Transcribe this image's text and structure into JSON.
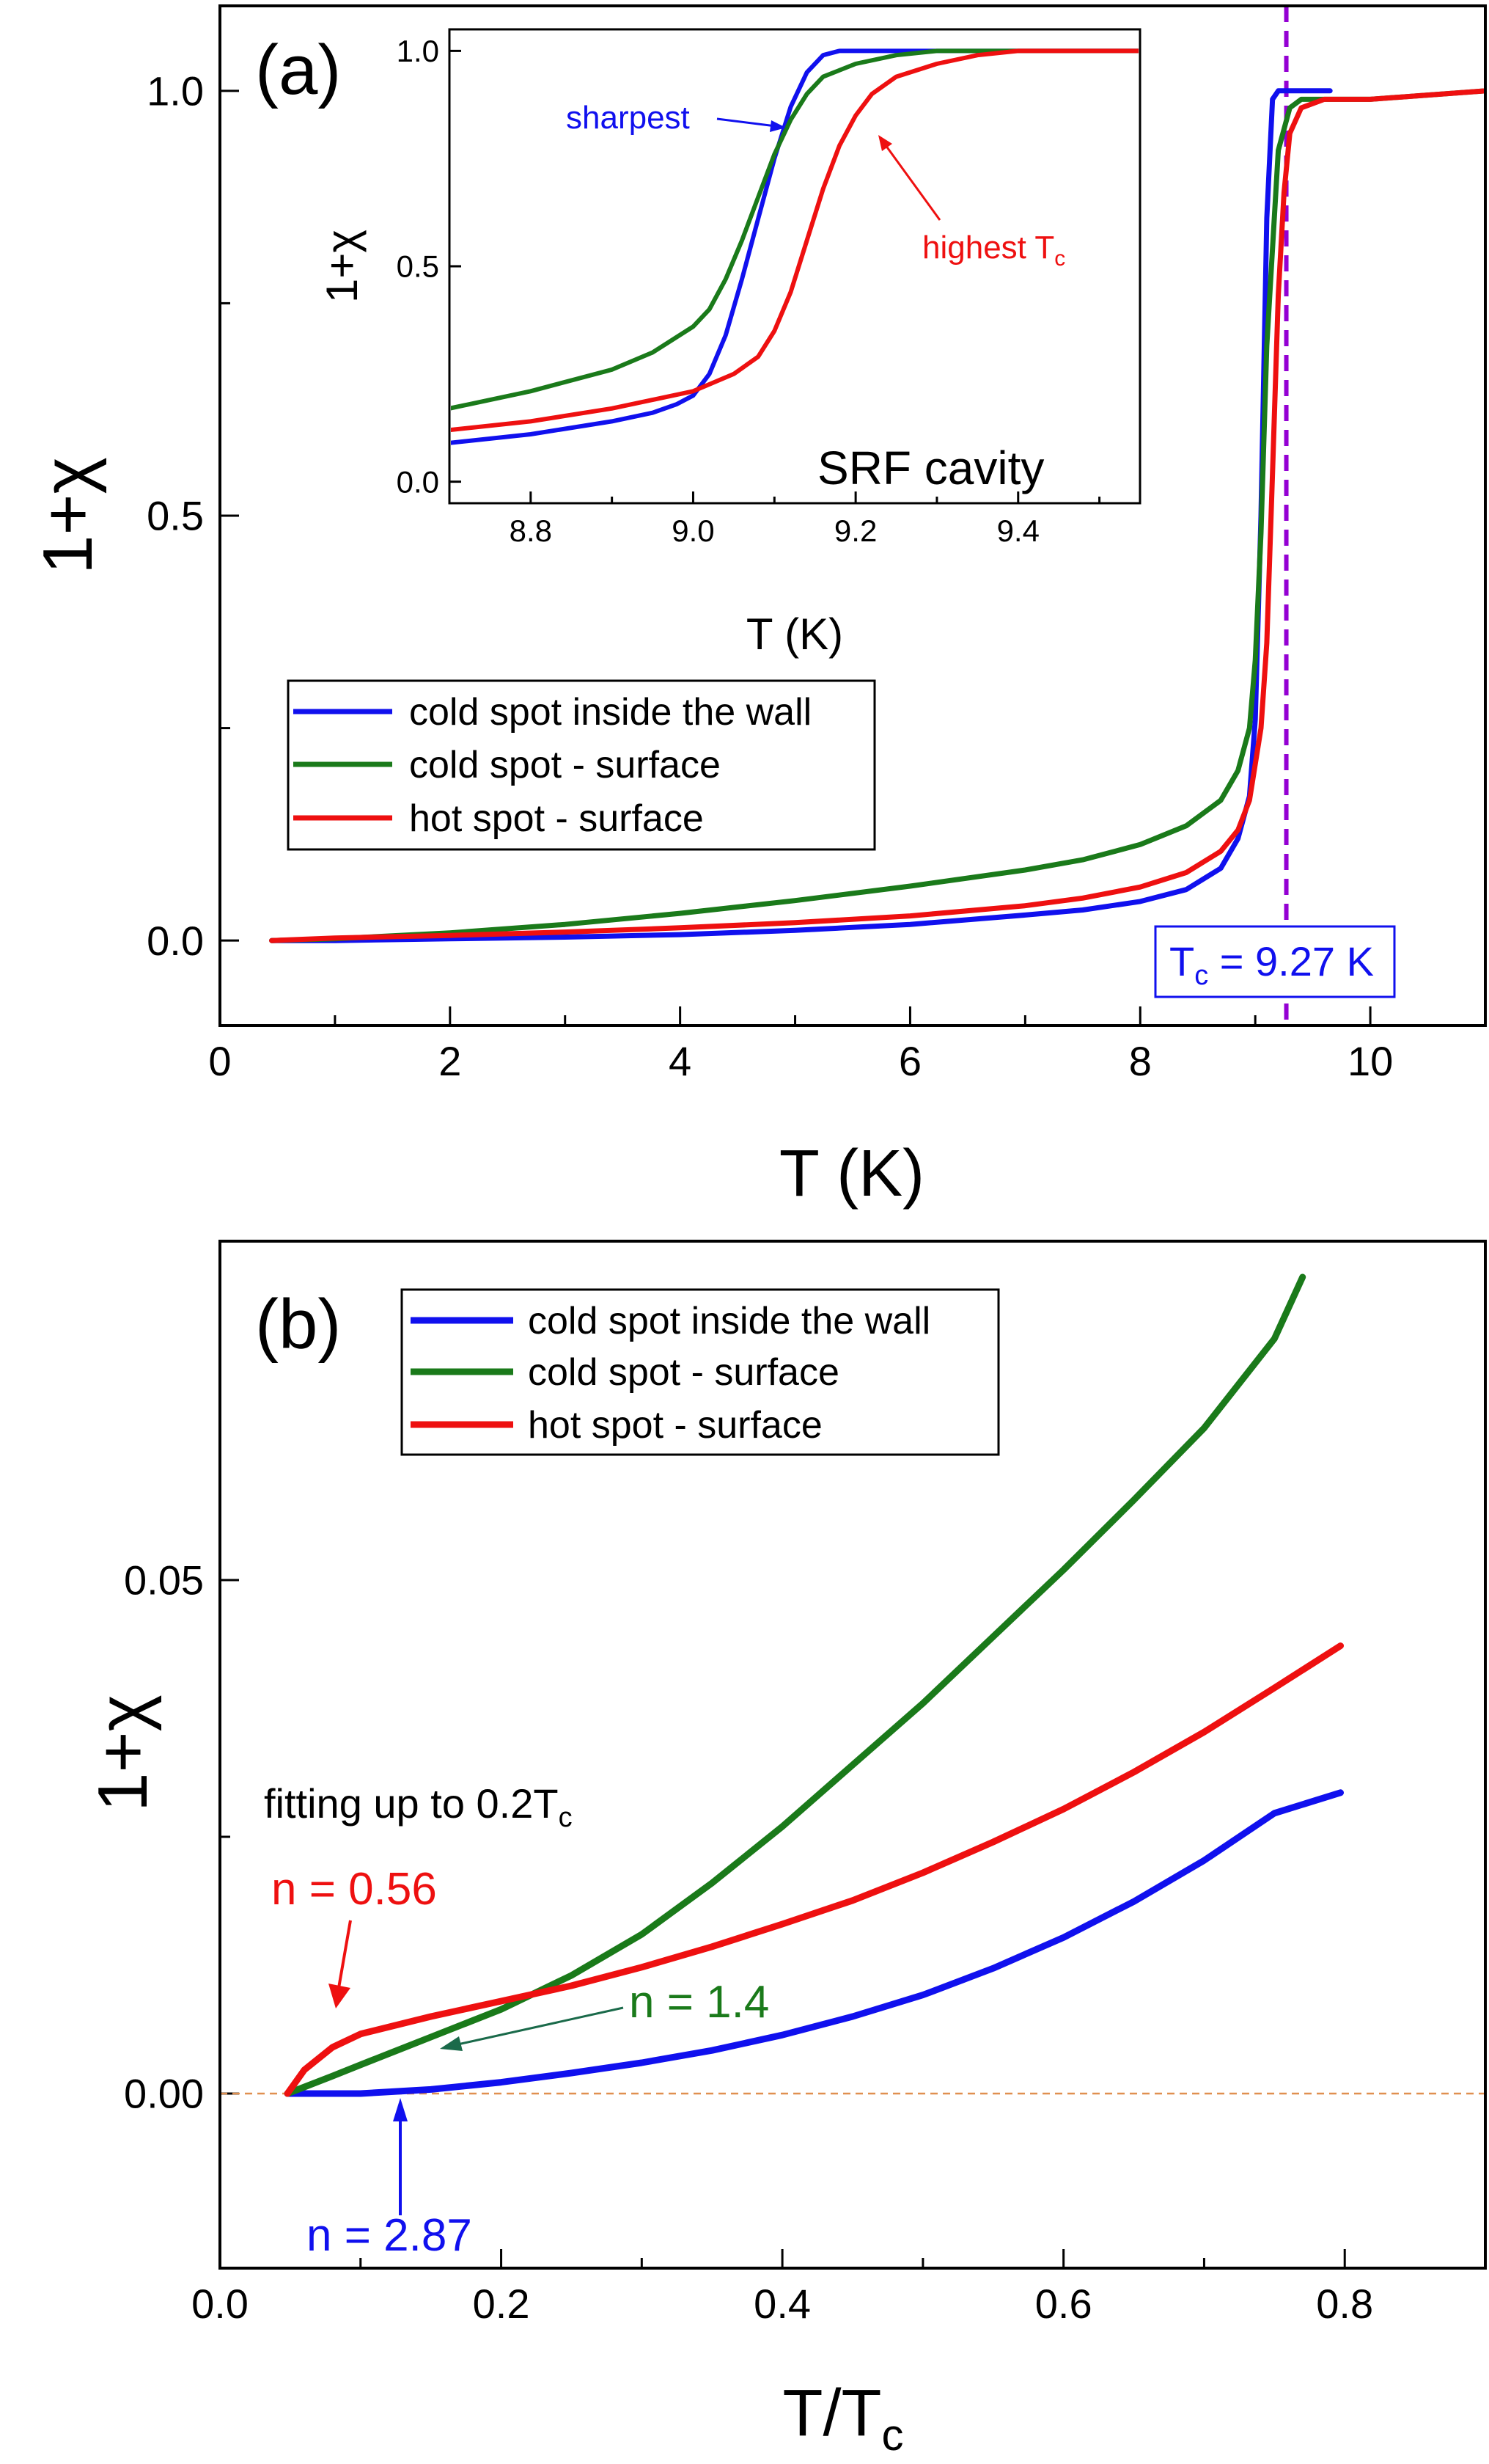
{
  "figure": {
    "colors": {
      "blue": "#1010ee",
      "green": "#1a7a1a",
      "red": "#ee1010",
      "tc_line": "#9400d3",
      "zero_line": "#e09050",
      "annot_green": "#1a6a4a",
      "frame": "#000000"
    }
  },
  "chart_data": [
    {
      "type": "line",
      "panel_label": "(a)",
      "xlabel": "T (K)",
      "ylabel": "1+χ",
      "xlim": [
        0,
        11
      ],
      "ylim": [
        -0.1,
        1.1
      ],
      "x_ticks": [
        0,
        2,
        4,
        6,
        8,
        10
      ],
      "x_tick_labels": [
        "0",
        "2",
        "4",
        "6",
        "8",
        "10"
      ],
      "y_ticks": [
        0.0,
        0.5,
        1.0
      ],
      "y_tick_labels": [
        "0.0",
        "0.5",
        "1.0"
      ],
      "y_minor_ticks": [
        0.25,
        0.75
      ],
      "legend_position": "middle-left",
      "tc_line": {
        "x": 9.27,
        "label": "T",
        "label_sub": "c",
        "label_rest": " = 9.27 K"
      },
      "series": [
        {
          "name": "cold spot inside the wall",
          "color_key": "blue",
          "x": [
            0.45,
            1,
            2,
            3,
            4,
            5,
            6,
            7,
            7.5,
            8,
            8.4,
            8.7,
            8.85,
            8.95,
            9.0,
            9.05,
            9.1,
            9.15,
            9.2,
            9.3,
            9.6,
            9.65
          ],
          "y": [
            0.0,
            0.0,
            0.002,
            0.004,
            0.007,
            0.012,
            0.019,
            0.03,
            0.036,
            0.046,
            0.06,
            0.085,
            0.12,
            0.17,
            0.26,
            0.5,
            0.85,
            0.99,
            1.0,
            1.0,
            1.0,
            1.0
          ]
        },
        {
          "name": "cold spot - surface",
          "color_key": "green",
          "x": [
            0.45,
            1,
            2,
            3,
            4,
            5,
            6,
            7,
            7.5,
            8,
            8.4,
            8.7,
            8.85,
            8.95,
            9.0,
            9.05,
            9.1,
            9.2,
            9.3,
            9.4,
            9.6,
            10,
            11
          ],
          "y": [
            0.0,
            0.002,
            0.009,
            0.019,
            0.032,
            0.047,
            0.064,
            0.083,
            0.095,
            0.113,
            0.135,
            0.165,
            0.2,
            0.25,
            0.33,
            0.48,
            0.7,
            0.93,
            0.98,
            0.99,
            0.99,
            0.99,
            1.0
          ]
        },
        {
          "name": "hot spot - surface",
          "color_key": "red",
          "x": [
            0.45,
            1,
            2,
            3,
            4,
            5,
            6,
            7,
            7.5,
            8,
            8.4,
            8.7,
            8.85,
            8.95,
            9.05,
            9.1,
            9.15,
            9.2,
            9.25,
            9.3,
            9.4,
            9.6,
            10,
            11
          ],
          "y": [
            0.0,
            0.003,
            0.006,
            0.01,
            0.015,
            0.021,
            0.029,
            0.041,
            0.05,
            0.063,
            0.08,
            0.105,
            0.13,
            0.165,
            0.25,
            0.35,
            0.55,
            0.76,
            0.88,
            0.95,
            0.98,
            0.99,
            0.99,
            1.0
          ]
        }
      ],
      "inset": {
        "title": "SRF cavity",
        "xlabel": "T (K)",
        "ylabel": "1+χ",
        "xlim": [
          8.7,
          9.55
        ],
        "ylim": [
          -0.05,
          1.05
        ],
        "x_ticks": [
          8.8,
          9.0,
          9.2,
          9.4
        ],
        "x_tick_labels": [
          "8.8",
          "9.0",
          "9.2",
          "9.4"
        ],
        "y_ticks": [
          0.0,
          0.5,
          1.0
        ],
        "y_tick_labels": [
          "0.0",
          "0.5",
          "1.0"
        ],
        "annotations": [
          {
            "text": "sharpest",
            "color_key": "blue",
            "x": 9.06,
            "y": 0.92
          },
          {
            "text": "highest T",
            "sub": "c",
            "color_key": "red",
            "x": 9.2,
            "y": 0.8
          }
        ],
        "series": [
          {
            "name": "cold spot inside the wall",
            "color_key": "blue",
            "x": [
              8.7,
              8.8,
              8.9,
              8.95,
              8.98,
              9.0,
              9.02,
              9.04,
              9.06,
              9.08,
              9.1,
              9.12,
              9.14,
              9.16,
              9.18,
              9.2,
              9.3,
              9.55
            ],
            "y": [
              0.09,
              0.11,
              0.14,
              0.16,
              0.18,
              0.2,
              0.25,
              0.34,
              0.47,
              0.61,
              0.75,
              0.87,
              0.95,
              0.99,
              1.0,
              1.0,
              1.0,
              1.0
            ]
          },
          {
            "name": "cold spot - surface",
            "color_key": "green",
            "x": [
              8.7,
              8.8,
              8.9,
              8.95,
              9.0,
              9.02,
              9.04,
              9.06,
              9.08,
              9.1,
              9.12,
              9.14,
              9.16,
              9.2,
              9.25,
              9.3,
              9.55
            ],
            "y": [
              0.17,
              0.21,
              0.26,
              0.3,
              0.36,
              0.4,
              0.47,
              0.56,
              0.66,
              0.76,
              0.84,
              0.9,
              0.94,
              0.97,
              0.99,
              1.0,
              1.0
            ]
          },
          {
            "name": "hot spot - surface",
            "color_key": "red",
            "x": [
              8.7,
              8.8,
              8.9,
              9.0,
              9.05,
              9.08,
              9.1,
              9.12,
              9.14,
              9.16,
              9.18,
              9.2,
              9.22,
              9.25,
              9.3,
              9.35,
              9.4,
              9.55
            ],
            "y": [
              0.12,
              0.14,
              0.17,
              0.21,
              0.25,
              0.29,
              0.35,
              0.44,
              0.56,
              0.68,
              0.78,
              0.85,
              0.9,
              0.94,
              0.97,
              0.99,
              1.0,
              1.0
            ]
          }
        ]
      }
    },
    {
      "type": "line",
      "panel_label": "(b)",
      "xlabel": "T/T",
      "xlabel_sub": "c",
      "ylabel": "1+χ",
      "xlim": [
        0.0,
        0.9
      ],
      "ylim": [
        -0.017,
        0.083
      ],
      "x_ticks": [
        0.0,
        0.2,
        0.4,
        0.6,
        0.8
      ],
      "x_tick_labels": [
        "0.0",
        "0.2",
        "0.4",
        "0.6",
        "0.8"
      ],
      "y_ticks": [
        0.0,
        0.05
      ],
      "y_tick_labels": [
        "0.00",
        "0.05"
      ],
      "y_minor_ticks": [
        0.025
      ],
      "legend_position": "top-left",
      "zero_line": true,
      "annotations": [
        {
          "text": "fitting up to 0.2T",
          "sub": "c",
          "color_key": "frame",
          "x": 0.03,
          "y": 0.024
        },
        {
          "text": "n = 0.56",
          "color_key": "red",
          "x": 0.03,
          "y": 0.018
        },
        {
          "text": "n = 1.4",
          "color_key": "green",
          "x": 0.3,
          "y": 0.008
        },
        {
          "text": "n = 2.87",
          "color_key": "blue",
          "x": 0.07,
          "y": -0.012
        }
      ],
      "series": [
        {
          "name": "cold spot inside the wall",
          "color_key": "blue",
          "x": [
            0.048,
            0.08,
            0.1,
            0.15,
            0.2,
            0.25,
            0.3,
            0.35,
            0.4,
            0.45,
            0.5,
            0.55,
            0.6,
            0.65,
            0.7,
            0.75,
            0.797
          ],
          "y": [
            0.0,
            0.0,
            0.0,
            0.0004,
            0.0011,
            0.002,
            0.003,
            0.0042,
            0.0057,
            0.0075,
            0.0096,
            0.0122,
            0.0152,
            0.0187,
            0.0227,
            0.0273,
            0.0293
          ]
        },
        {
          "name": "cold spot - surface",
          "color_key": "green",
          "x": [
            0.048,
            0.08,
            0.1,
            0.15,
            0.2,
            0.25,
            0.3,
            0.35,
            0.4,
            0.45,
            0.5,
            0.55,
            0.6,
            0.65,
            0.7,
            0.75,
            0.77
          ],
          "y": [
            0.0,
            0.0017,
            0.0028,
            0.0055,
            0.0082,
            0.0115,
            0.0155,
            0.0205,
            0.026,
            0.032,
            0.038,
            0.0445,
            0.051,
            0.0578,
            0.0648,
            0.0735,
            0.0795
          ]
        },
        {
          "name": "hot spot - surface",
          "color_key": "red",
          "x": [
            0.048,
            0.06,
            0.08,
            0.1,
            0.15,
            0.2,
            0.25,
            0.3,
            0.35,
            0.4,
            0.45,
            0.5,
            0.55,
            0.6,
            0.65,
            0.7,
            0.75,
            0.797
          ],
          "y": [
            0.0,
            0.0023,
            0.0045,
            0.0058,
            0.0075,
            0.009,
            0.0105,
            0.0123,
            0.0143,
            0.0165,
            0.0188,
            0.0215,
            0.0245,
            0.0277,
            0.0313,
            0.0352,
            0.0395,
            0.0436
          ]
        }
      ]
    }
  ]
}
